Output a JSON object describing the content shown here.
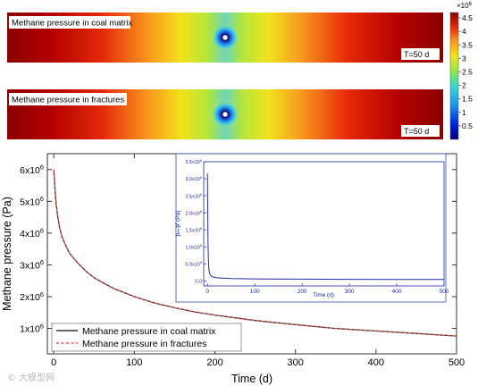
{
  "chart_data": [
    {
      "type": "heatmap",
      "panel_label": "Methane pressure in coal matrix",
      "time_label": "T=50 d",
      "colorbar": {
        "multiplier": "×10",
        "multiplier_exp": "6",
        "ticks": [
          "4.5",
          "4",
          "3.5",
          "3",
          "2.5",
          "2",
          "1.5",
          "1",
          "0.5"
        ],
        "tick_values": [
          4.5,
          4,
          3.5,
          3,
          2.5,
          2,
          1.5,
          1,
          0.5
        ],
        "range": [
          0,
          4.7
        ]
      }
    },
    {
      "type": "heatmap",
      "panel_label": "Methane pressure in fractures",
      "time_label": "T=50 d"
    },
    {
      "type": "line",
      "xlabel": "Time (d)",
      "ylabel": "Methane pressure (Pa)",
      "xlim": [
        -8,
        500
      ],
      "ylim": [
        200000,
        6500000
      ],
      "x_ticks": [
        0,
        100,
        200,
        300,
        400,
        500
      ],
      "y_ticks": [
        {
          "value": 1000000,
          "base": "1x10",
          "exp": "6"
        },
        {
          "value": 2000000,
          "base": "2x10",
          "exp": "6"
        },
        {
          "value": 3000000,
          "base": "3x10",
          "exp": "6"
        },
        {
          "value": 4000000,
          "base": "4x10",
          "exp": "6"
        },
        {
          "value": 5000000,
          "base": "5x10",
          "exp": "6"
        },
        {
          "value": 6000000,
          "base": "6x10",
          "exp": "6"
        }
      ],
      "legend_position": "bottom-left",
      "series": [
        {
          "name": "Methane pressure in coal matrix",
          "color": "#333333",
          "style": "solid",
          "x": [
            0,
            1,
            2,
            3,
            5,
            7,
            10,
            15,
            20,
            30,
            40,
            50,
            60,
            75,
            100,
            125,
            150,
            175,
            200,
            250,
            300,
            350,
            400,
            450,
            500
          ],
          "y": [
            6000000,
            5600000,
            5200000,
            4900000,
            4500000,
            4200000,
            3900000,
            3600000,
            3350000,
            3050000,
            2800000,
            2600000,
            2450000,
            2250000,
            2000000,
            1800000,
            1650000,
            1520000,
            1420000,
            1250000,
            1120000,
            1000000,
            920000,
            840000,
            760000
          ]
        },
        {
          "name": "Methane pressure in fractures",
          "color": "#e0524e",
          "style": "dashed",
          "x": [
            0,
            1,
            2,
            3,
            5,
            7,
            10,
            15,
            20,
            30,
            40,
            50,
            60,
            75,
            100,
            125,
            150,
            175,
            200,
            250,
            300,
            350,
            400,
            450,
            500
          ],
          "y": [
            6000000,
            5600000,
            5200000,
            4900000,
            4500000,
            4200000,
            3900000,
            3600000,
            3350000,
            3050000,
            2800000,
            2600000,
            2450000,
            2250000,
            2000000,
            1800000,
            1650000,
            1520000,
            1420000,
            1250000,
            1120000,
            1000000,
            920000,
            840000,
            760000
          ]
        }
      ]
    },
    {
      "type": "line",
      "role": "inset",
      "xlabel": "Time (d)",
      "ylabel": "pₘ-pᶠ (Pa)",
      "xlim": [
        -8,
        500
      ],
      "ylim": [
        -150000,
        3500000
      ],
      "x_ticks": [
        0,
        100,
        200,
        300,
        400,
        500
      ],
      "y_ticks": [
        {
          "value": 0,
          "label": "0.0",
          "exp": ""
        },
        {
          "value": 500000,
          "label": "5.0x10",
          "exp": "5"
        },
        {
          "value": 1000000,
          "label": "1.0x10",
          "exp": "6"
        },
        {
          "value": 1500000,
          "label": "1.5x10",
          "exp": "6"
        },
        {
          "value": 2000000,
          "label": "2.0x10",
          "exp": "6"
        },
        {
          "value": 2500000,
          "label": "2.5x10",
          "exp": "6"
        },
        {
          "value": 3000000,
          "label": "3.0x10",
          "exp": "6"
        },
        {
          "value": 3500000,
          "label": "3.5x10",
          "exp": "6"
        }
      ],
      "series": [
        {
          "color": "#1c2aa8",
          "x": [
            0,
            0.5,
            1,
            2,
            3,
            5,
            8,
            12,
            20,
            30,
            50,
            80,
            120,
            200,
            300,
            400,
            500
          ],
          "y": [
            3150000,
            2100000,
            1200000,
            600000,
            330000,
            200000,
            140000,
            110000,
            90000,
            80000,
            68000,
            60000,
            55000,
            50000,
            45000,
            42000,
            40000
          ]
        }
      ]
    }
  ],
  "watermark": "© 大模型网"
}
